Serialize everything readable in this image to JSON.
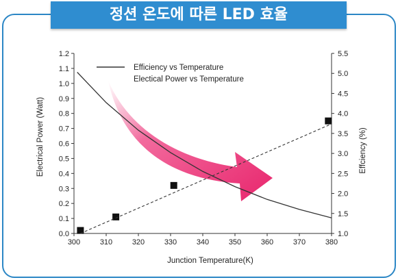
{
  "banner": {
    "title": "정션 온도에 따른 LED 효율"
  },
  "chart_data": {
    "type": "scatter",
    "title": "정션 온도에 따른 LED 효율",
    "xlabel": "Junction Temperature(K)",
    "ylabel_left": "Electrical Power (Watt)",
    "ylabel_right": "Effciency (%)",
    "xlim": [
      300,
      380
    ],
    "ylim_left": [
      0.0,
      1.2
    ],
    "ylim_right": [
      1.0,
      5.5
    ],
    "x_ticks": [
      "300",
      "310",
      "320",
      "330",
      "340",
      "350",
      "360",
      "370",
      "380"
    ],
    "y_left_ticks": [
      "0.0",
      "0.1",
      "0.2",
      "0.3",
      "0.4",
      "0.5",
      "0.6",
      "0.7",
      "0.8",
      "0.9",
      "1.0",
      "1.1",
      "1.2"
    ],
    "y_right_ticks": [
      "1.0",
      "1.5",
      "2.0",
      "2.5",
      "3.0",
      "3.5",
      "4.0",
      "4.5",
      "5.0",
      "5.5"
    ],
    "legend_position": "top-left",
    "grid": false,
    "series": [
      {
        "name": "Efficiency vs Temperature",
        "style": "solid-line",
        "axis": "right",
        "x": [
          301,
          310,
          320,
          330,
          340,
          350,
          360,
          370,
          380
        ],
        "y": [
          5.03,
          4.27,
          3.58,
          3.02,
          2.55,
          2.17,
          1.85,
          1.6,
          1.39
        ]
      },
      {
        "name": "Electical Power vs Temperature",
        "style": "square-markers",
        "axis": "left",
        "x": [
          302,
          313,
          331,
          379
        ],
        "y": [
          0.02,
          0.11,
          0.32,
          0.75
        ]
      },
      {
        "name": "",
        "style": "dashed-fit",
        "axis": "left",
        "x": [
          302,
          380
        ],
        "y": [
          0.0,
          0.73
        ]
      }
    ],
    "arrow_color": "#ee3a7a",
    "line_color": "#333333",
    "marker_color": "#111111"
  }
}
